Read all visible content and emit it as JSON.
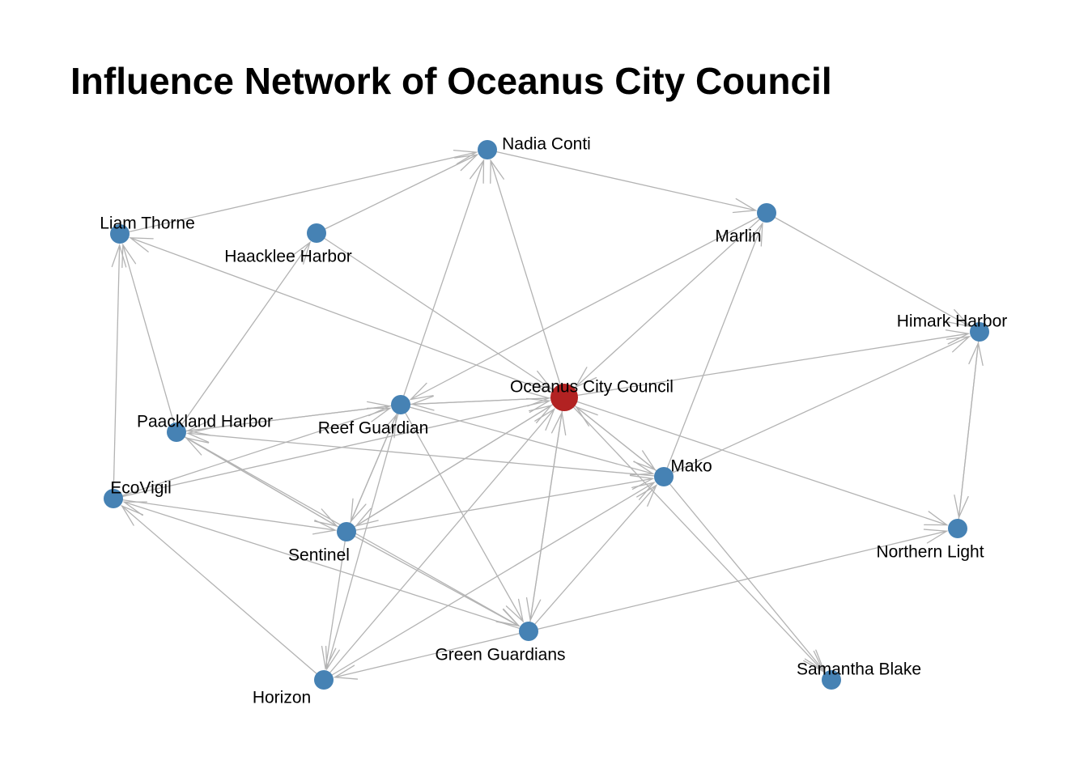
{
  "title": "Influence Network of Oceanus City Council",
  "colors": {
    "edge": "#b3b3b3",
    "node": "#4682b4",
    "focus_node": "#b22222",
    "background": "#ffffff"
  },
  "nodes": [
    {
      "id": "oceanus",
      "label": "Oceanus City Council",
      "focus": true
    },
    {
      "id": "nadia",
      "label": "Nadia Conti"
    },
    {
      "id": "marlin",
      "label": "Marlin"
    },
    {
      "id": "liam",
      "label": "Liam Thorne"
    },
    {
      "id": "haacklee",
      "label": "Haacklee Harbor"
    },
    {
      "id": "himark",
      "label": "Himark Harbor"
    },
    {
      "id": "reef",
      "label": "Reef Guardian"
    },
    {
      "id": "paackland",
      "label": "Paackland Harbor"
    },
    {
      "id": "mako",
      "label": "Mako"
    },
    {
      "id": "ecovigil",
      "label": "EcoVigil"
    },
    {
      "id": "sentinel",
      "label": "Sentinel"
    },
    {
      "id": "northern",
      "label": "Northern Light"
    },
    {
      "id": "green",
      "label": "Green Guardians"
    },
    {
      "id": "samantha",
      "label": "Samantha Blake"
    },
    {
      "id": "horizon",
      "label": "Horizon"
    }
  ],
  "edges": [
    [
      "liam",
      "nadia"
    ],
    [
      "haacklee",
      "nadia"
    ],
    [
      "nadia",
      "marlin"
    ],
    [
      "oceanus",
      "nadia"
    ],
    [
      "reef",
      "nadia"
    ],
    [
      "marlin",
      "himark"
    ],
    [
      "himark",
      "northern"
    ],
    [
      "northern",
      "himark"
    ],
    [
      "ecovigil",
      "liam"
    ],
    [
      "paackland",
      "liam"
    ],
    [
      "oceanus",
      "liam"
    ],
    [
      "haacklee",
      "oceanus"
    ],
    [
      "paackland",
      "haacklee"
    ],
    [
      "oceanus",
      "himark"
    ],
    [
      "mako",
      "himark"
    ],
    [
      "oceanus",
      "reef"
    ],
    [
      "reef",
      "oceanus"
    ],
    [
      "paackland",
      "reef"
    ],
    [
      "reef",
      "paackland"
    ],
    [
      "ecovigil",
      "reef"
    ],
    [
      "mako",
      "paackland"
    ],
    [
      "ecovigil",
      "oceanus"
    ],
    [
      "sentinel",
      "oceanus"
    ],
    [
      "oceanus",
      "sentinel"
    ],
    [
      "marlin",
      "oceanus"
    ],
    [
      "mako",
      "marlin"
    ],
    [
      "marlin",
      "reef"
    ],
    [
      "oceanus",
      "mako"
    ],
    [
      "reef",
      "mako"
    ],
    [
      "mako",
      "oceanus"
    ],
    [
      "oceanus",
      "northern"
    ],
    [
      "mako",
      "samantha"
    ],
    [
      "oceanus",
      "samantha"
    ],
    [
      "sentinel",
      "mako"
    ],
    [
      "green",
      "mako"
    ],
    [
      "horizon",
      "mako"
    ],
    [
      "green",
      "oceanus"
    ],
    [
      "horizon",
      "oceanus"
    ],
    [
      "oceanus",
      "green"
    ],
    [
      "paackland",
      "sentinel"
    ],
    [
      "sentinel",
      "paackland"
    ],
    [
      "ecovigil",
      "sentinel"
    ],
    [
      "reef",
      "sentinel"
    ],
    [
      "sentinel",
      "reef"
    ],
    [
      "sentinel",
      "horizon"
    ],
    [
      "reef",
      "horizon"
    ],
    [
      "reef",
      "green"
    ],
    [
      "sentinel",
      "green"
    ],
    [
      "paackland",
      "green"
    ],
    [
      "green",
      "ecovigil"
    ],
    [
      "horizon",
      "ecovigil"
    ],
    [
      "green",
      "horizon"
    ],
    [
      "green",
      "northern"
    ]
  ]
}
